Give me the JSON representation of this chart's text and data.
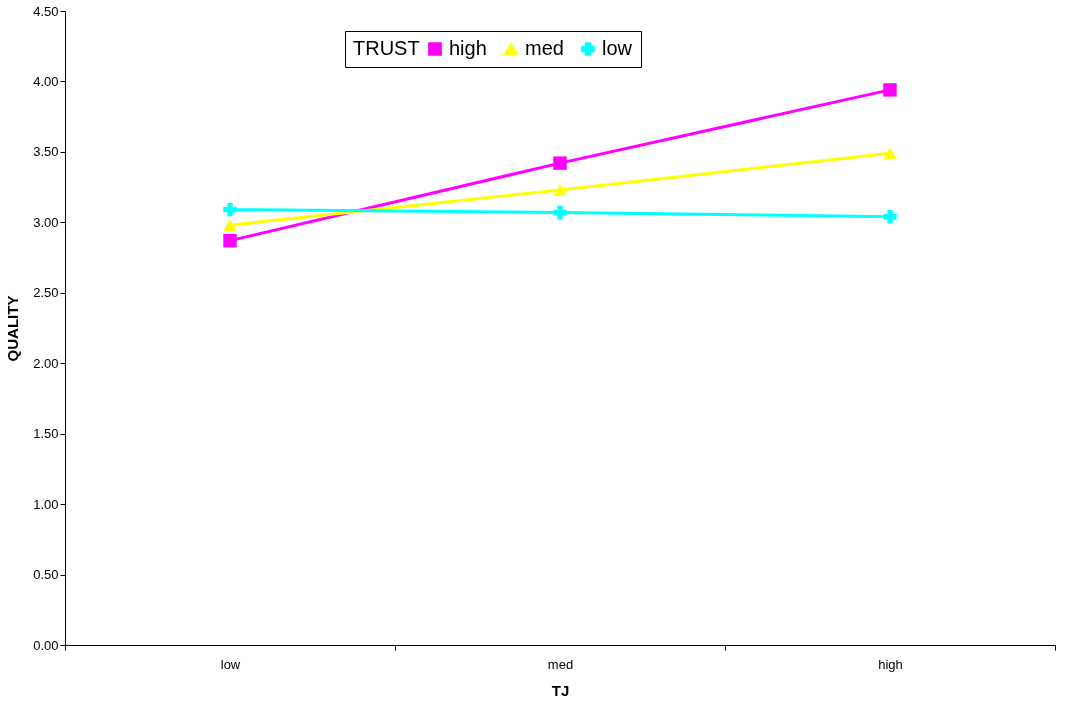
{
  "chart_data": {
    "type": "line",
    "xlabel": "TJ",
    "ylabel": "QUALITY",
    "legend_title": "TRUST",
    "categories": [
      "low",
      "med",
      "high"
    ],
    "series": [
      {
        "name": "high",
        "color": "#ff00ff",
        "marker": "square",
        "values": [
          2.87,
          3.42,
          3.94
        ]
      },
      {
        "name": "med",
        "color": "#ffff00",
        "marker": "triangle",
        "values": [
          2.98,
          3.23,
          3.49
        ]
      },
      {
        "name": "low",
        "color": "#00ffff",
        "marker": "cross",
        "values": [
          3.09,
          3.07,
          3.04
        ]
      }
    ],
    "ylim": [
      0,
      4.5
    ],
    "yticks": [
      {
        "value": 0,
        "label": "0.00"
      },
      {
        "value": 0.5,
        "label": "0.50"
      },
      {
        "value": 1,
        "label": "1.00"
      },
      {
        "value": 1.5,
        "label": "1.50"
      },
      {
        "value": 2,
        "label": "2.00"
      },
      {
        "value": 2.5,
        "label": "2.50"
      },
      {
        "value": 3,
        "label": "3.00"
      },
      {
        "value": 3.5,
        "label": "3.50"
      },
      {
        "value": 4,
        "label": "4.00"
      },
      {
        "value": 4.5,
        "label": "4.50"
      }
    ],
    "grid": false,
    "legend": "top",
    "line_style": "solid"
  }
}
